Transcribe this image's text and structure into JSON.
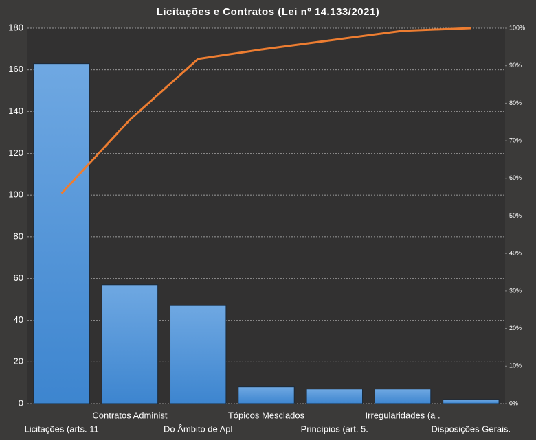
{
  "chart_data": {
    "type": "pareto",
    "title": "Licitações e Contratos (Lei nº 14.133/2021)",
    "categories": [
      "Licitações (arts. 11",
      "Contratos Administ",
      "Do Âmbito de Apl",
      "Tópicos Mesclados",
      "Princípios (art. 5.",
      "Irregularidades (a .",
      "Disposições Gerais."
    ],
    "series": [
      {
        "type": "bar",
        "color": "#4a8fd6",
        "values": [
          163,
          57,
          47,
          8,
          7,
          7,
          2
        ]
      },
      {
        "type": "line",
        "axis": "y2",
        "color": "#ed7d31",
        "values": [
          56,
          75.6,
          91.8,
          94.5,
          96.9,
          99.3,
          100
        ]
      }
    ],
    "ylim": [
      0,
      180
    ],
    "yticks": [
      0,
      20,
      40,
      60,
      80,
      100,
      120,
      140,
      160,
      180
    ],
    "y2lim": [
      0,
      100
    ],
    "y2ticks": [
      {
        "value": 0,
        "label": "0%"
      },
      {
        "value": 10,
        "label": "10%"
      },
      {
        "value": 20,
        "label": "20%"
      },
      {
        "value": 30,
        "label": "30%"
      },
      {
        "value": 40,
        "label": "40%"
      },
      {
        "value": 50,
        "label": "50%"
      },
      {
        "value": 60,
        "label": "60%"
      },
      {
        "value": 70,
        "label": "70%"
      },
      {
        "value": 80,
        "label": "80%"
      },
      {
        "value": 90,
        "label": "90%"
      },
      {
        "value": 100,
        "label": "100%"
      }
    ],
    "grid": true
  }
}
